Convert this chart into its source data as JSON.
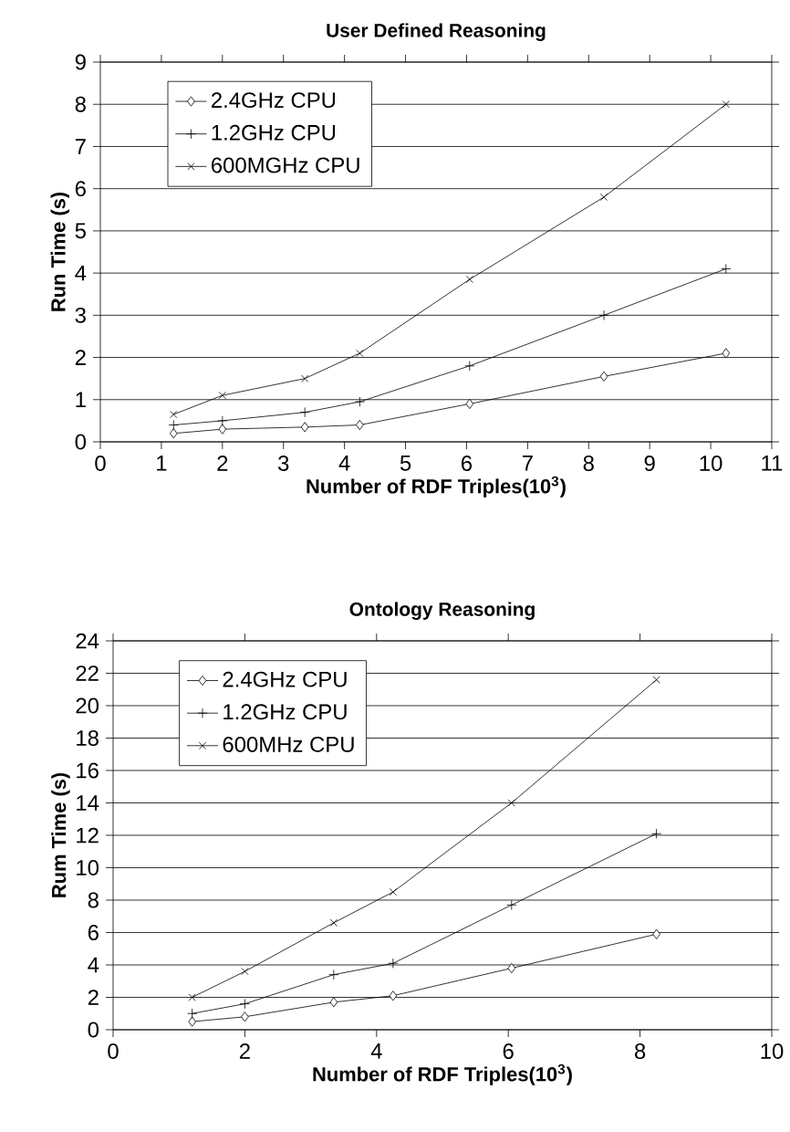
{
  "chart_data": [
    {
      "type": "line",
      "title": "User Defined Reasoning",
      "xlabel": "Number of RDF Triples(10$^{3}$)",
      "ylabel": "Run Time (s)",
      "x": [
        1.2,
        2.0,
        3.35,
        4.25,
        6.05,
        8.25,
        10.25
      ],
      "xlim": [
        0,
        11
      ],
      "xticks": [
        0,
        1,
        2,
        3,
        4,
        5,
        6,
        7,
        8,
        9,
        10,
        11
      ],
      "ylim": [
        0,
        9
      ],
      "yticks": [
        0,
        1,
        2,
        3,
        4,
        5,
        6,
        7,
        8,
        9
      ],
      "grid": "y",
      "legend": "top left",
      "series": [
        {
          "name": "2.4GHz CPU",
          "color": "#000000",
          "marker": "diamond",
          "values": [
            0.2,
            0.3,
            0.35,
            0.4,
            0.9,
            1.55,
            2.1
          ]
        },
        {
          "name": "1.2GHz CPU",
          "color": "#000000",
          "marker": "plus",
          "values": [
            0.4,
            0.5,
            0.7,
            0.95,
            1.8,
            3.0,
            4.1
          ]
        },
        {
          "name": "600MGHz CPU",
          "color": "#000000",
          "marker": "cross",
          "values": [
            0.65,
            1.1,
            1.5,
            2.1,
            3.85,
            5.8,
            8.0
          ]
        }
      ]
    },
    {
      "type": "line",
      "title": "Ontology Reasoning",
      "xlabel": "Number of RDF Triples(10$^{3}$)",
      "ylabel": "Rum Time (s)",
      "x": [
        1.2,
        2.0,
        3.35,
        4.25,
        6.05,
        8.25
      ],
      "xlim": [
        0,
        10
      ],
      "xticks": [
        0,
        2,
        4,
        6,
        8,
        10
      ],
      "ylim": [
        0,
        24
      ],
      "yticks": [
        0,
        2,
        4,
        6,
        8,
        10,
        12,
        14,
        16,
        18,
        20,
        22,
        24
      ],
      "grid": "y",
      "legend": "top left",
      "series": [
        {
          "name": "2.4GHz CPU",
          "color": "#000000",
          "marker": "diamond",
          "values": [
            0.5,
            0.8,
            1.7,
            2.1,
            3.8,
            5.9
          ]
        },
        {
          "name": "1.2GHz CPU",
          "color": "#000000",
          "marker": "plus",
          "values": [
            1.0,
            1.6,
            3.4,
            4.1,
            7.7,
            12.1
          ]
        },
        {
          "name": "600MHz CPU",
          "color": "#000000",
          "marker": "cross",
          "values": [
            2.0,
            3.6,
            6.6,
            8.5,
            14.0,
            21.6
          ]
        }
      ]
    }
  ]
}
